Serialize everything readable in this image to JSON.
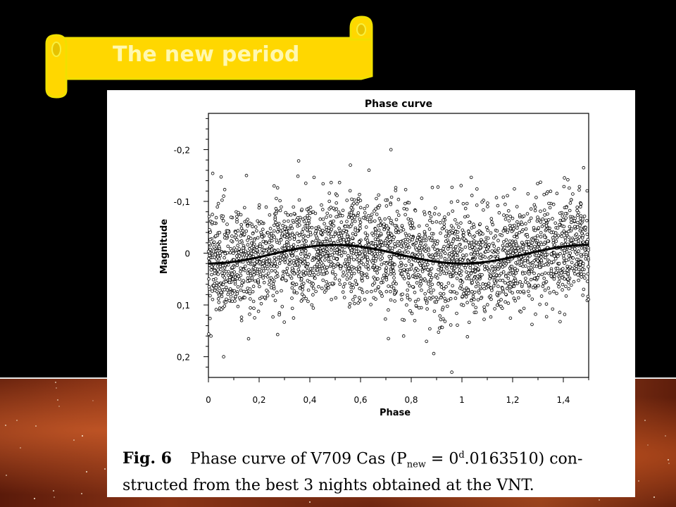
{
  "slide": {
    "title": "The new period",
    "accent_color": "#ffd700",
    "title_text_color": "#fff8b0"
  },
  "figure": {
    "caption_label": "Fig. 6",
    "caption_line1": "Phase curve of V709 Cas (P",
    "caption_subscript": "new",
    "caption_equals": " = 0",
    "caption_superscript": "d",
    "caption_period": ".0163510) con-",
    "caption_line2": "structed from the best 3 nights obtained at the VNT."
  },
  "chart_data": {
    "type": "scatter",
    "title": "Phase curve",
    "xlabel": "Phase",
    "ylabel": "Magnitude",
    "xlim": [
      0,
      1.5
    ],
    "ylim": [
      -0.27,
      0.24
    ],
    "y_inverted": true,
    "x_ticks": [
      0,
      0.2,
      0.4,
      0.6,
      0.8,
      1,
      1.2,
      1.4
    ],
    "x_tick_labels": [
      "0",
      "0,2",
      "0,4",
      "0,6",
      "0,8",
      "1",
      "1,2",
      "1,4"
    ],
    "y_ticks": [
      -0.2,
      -0.1,
      0,
      0.1,
      0.2
    ],
    "y_tick_labels": [
      "-0,2",
      "-0,1",
      "0",
      "0,1",
      "0,2"
    ],
    "grid": false,
    "legend": "none",
    "series": [
      {
        "kind": "points",
        "marker": "open-circle",
        "count_approx": 3000,
        "scatter_std": 0.05,
        "sample_points": [
          [
            0.01,
            0.16
          ],
          [
            0.06,
            0.2
          ],
          [
            0.71,
            0.165
          ],
          [
            0.77,
            0.16
          ],
          [
            0.96,
            0.23
          ],
          [
            0.72,
            -0.2
          ],
          [
            0.56,
            -0.17
          ],
          [
            0.06,
            -0.11
          ],
          [
            1.48,
            -0.165
          ],
          [
            0.15,
            -0.15
          ]
        ]
      },
      {
        "kind": "fit",
        "model": "sinusoid",
        "mean": 0.002,
        "amplitude": 0.018,
        "minimum_phase": 1.0,
        "maximum_phase": 0.5,
        "x": [
          0,
          0.25,
          0.5,
          0.75,
          1.0,
          1.25,
          1.5
        ],
        "y": [
          0.02,
          0.002,
          -0.016,
          0.002,
          0.02,
          0.002,
          -0.016
        ]
      }
    ]
  }
}
